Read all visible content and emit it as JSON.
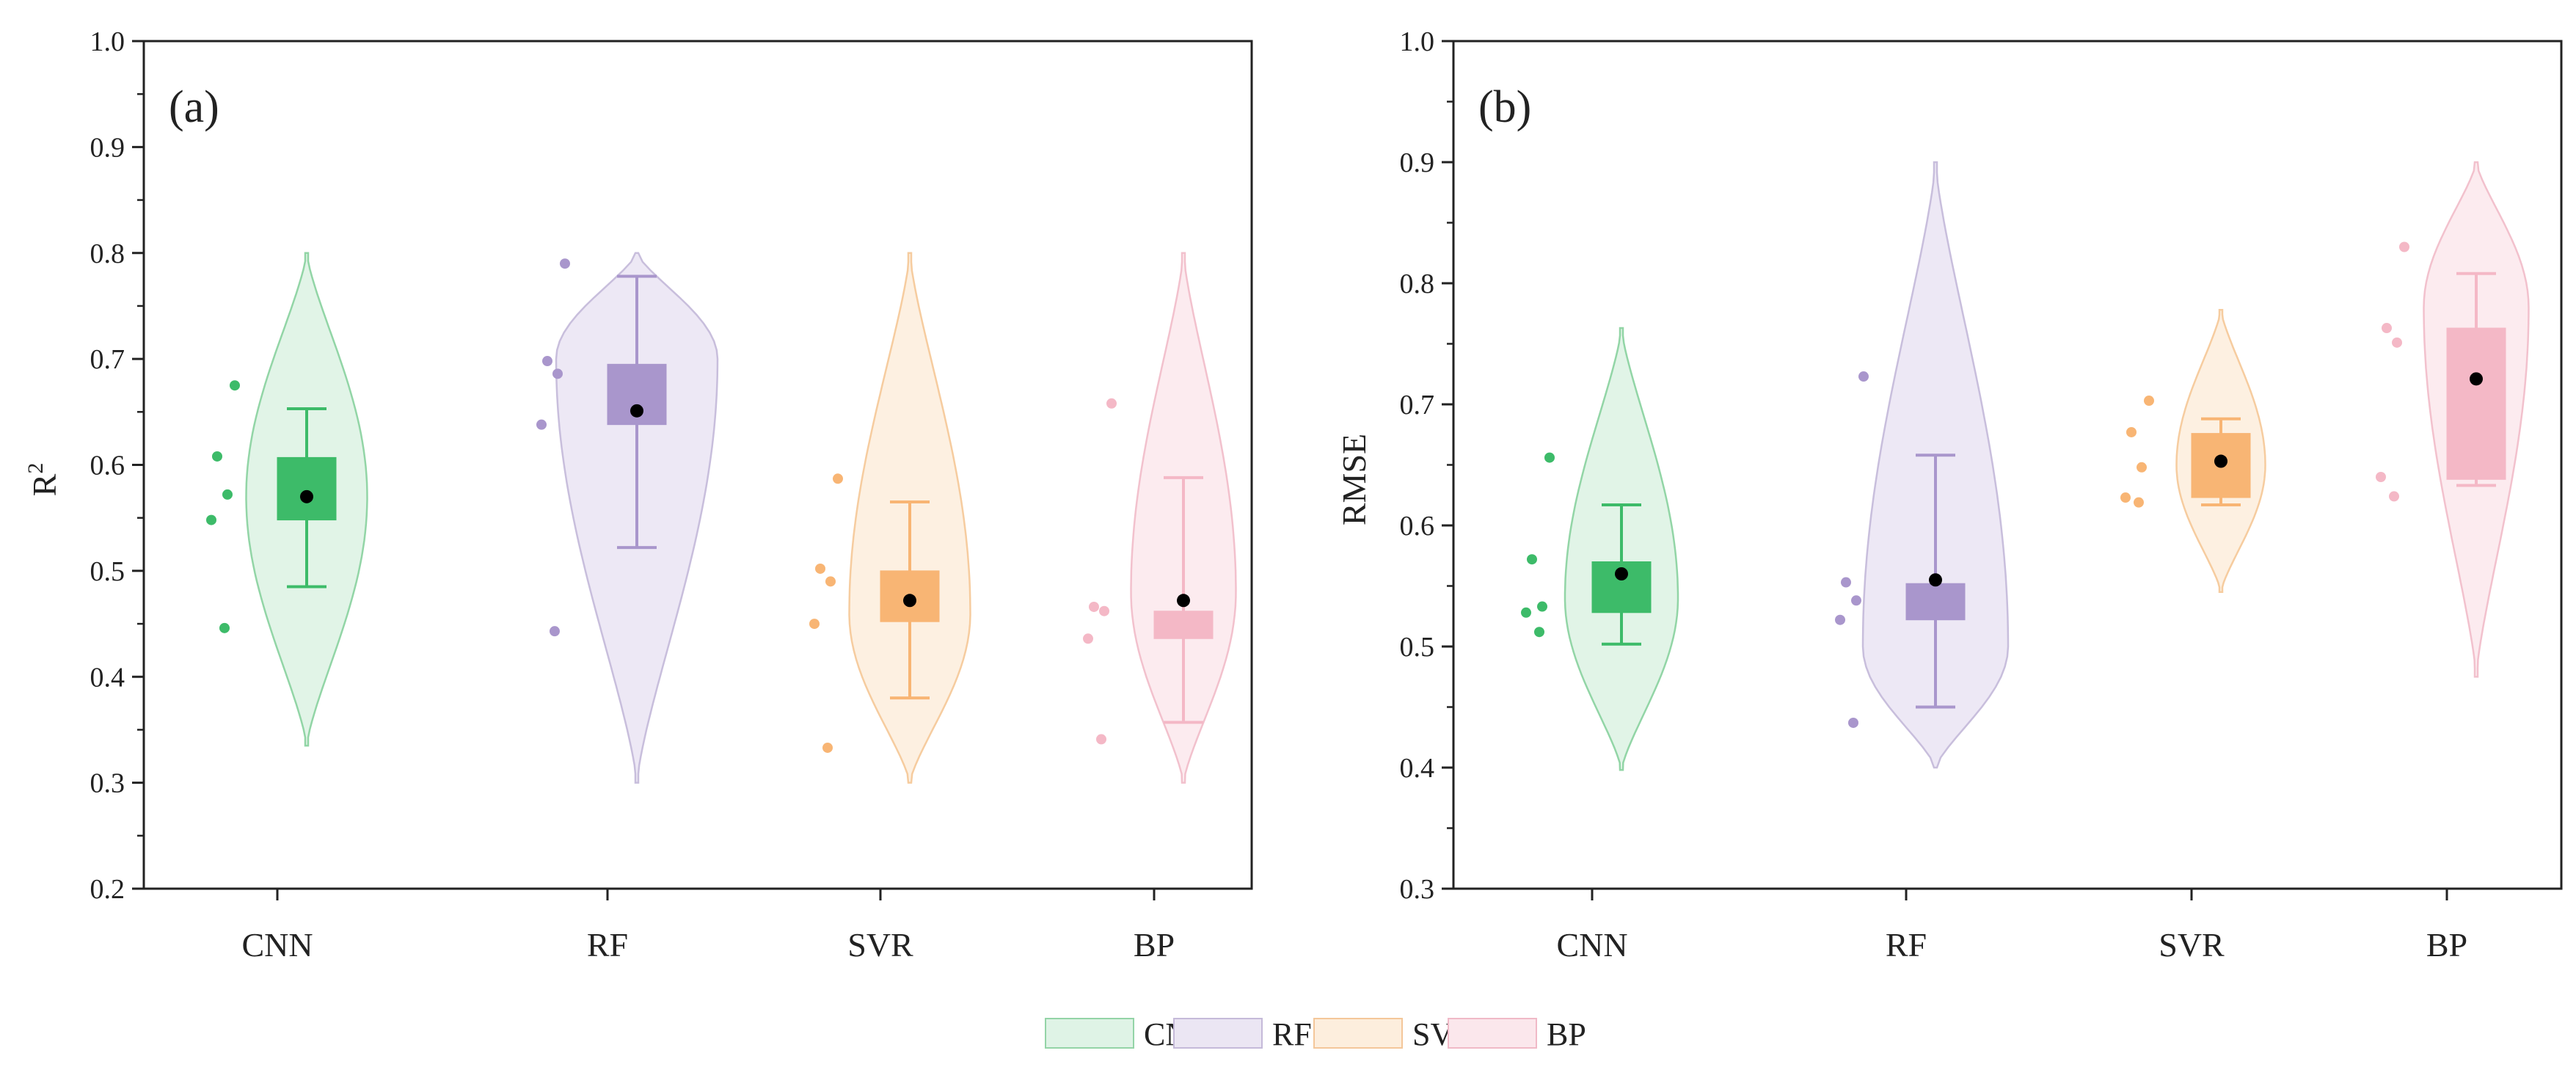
{
  "figure": {
    "legend": [
      {
        "name": "CNN",
        "fill": "#dff3e6",
        "stroke": "#94d4a7"
      },
      {
        "name": "RF",
        "fill": "#ebe6f3",
        "stroke": "#c5bad9"
      },
      {
        "name": "SVR",
        "fill": "#fdeedd",
        "stroke": "#f4c79a"
      },
      {
        "name": "BP",
        "fill": "#fbe7ec",
        "stroke": "#f0b9c7"
      }
    ]
  },
  "colors": {
    "CNN": {
      "box": "#3dbb69",
      "violin": "#e1f4e7",
      "violin_stroke": "#92d5a6",
      "point": "#3dbb69"
    },
    "RF": {
      "box": "#a996cc",
      "violin": "#ede8f5",
      "violin_stroke": "#c8bedc",
      "point": "#a996cc"
    },
    "SVR": {
      "box": "#f8b574",
      "violin": "#fdf0e1",
      "violin_stroke": "#f6cc9f",
      "point": "#f8b574"
    },
    "BP": {
      "box": "#f4b8c6",
      "violin": "#fcebef",
      "violin_stroke": "#f2c1cd",
      "point": "#f4b8c6"
    }
  },
  "chart_data": [
    {
      "type": "violin",
      "panel_label": "(a)",
      "ylabel": "R",
      "ylabel_sup": "2",
      "ylim": [
        0.2,
        1.0
      ],
      "yticks": [
        "0.2",
        "0.3",
        "0.4",
        "0.5",
        "0.6",
        "0.7",
        "0.8",
        "0.9",
        "1.0"
      ],
      "categories": [
        "CNN",
        "RF",
        "SVR",
        "BP"
      ],
      "series": [
        {
          "name": "CNN",
          "violin_range": [
            0.335,
            0.8
          ],
          "violin_mode": 0.57,
          "violin_max_halfwidth": 0.75,
          "q1": 0.548,
          "median": 0.57,
          "q3": 0.607,
          "whisker_low": 0.485,
          "whisker_high": 0.653,
          "mean": 0.57,
          "points": [
            0.675,
            0.608,
            0.572,
            0.548,
            0.446
          ]
        },
        {
          "name": "RF",
          "violin_range": [
            0.3,
            0.8
          ],
          "violin_mode": 0.7,
          "violin_max_halfwidth": 1.0,
          "q1": 0.638,
          "median": 0.65,
          "q3": 0.695,
          "whisker_low": 0.522,
          "whisker_high": 0.778,
          "mean": 0.651,
          "points": [
            0.79,
            0.698,
            0.686,
            0.638,
            0.443
          ]
        },
        {
          "name": "SVR",
          "violin_range": [
            0.3,
            0.8
          ],
          "violin_mode": 0.46,
          "violin_max_halfwidth": 0.75,
          "q1": 0.452,
          "median": 0.47,
          "q3": 0.5,
          "whisker_low": 0.38,
          "whisker_high": 0.565,
          "mean": 0.472,
          "points": [
            0.587,
            0.502,
            0.49,
            0.45,
            0.333
          ]
        },
        {
          "name": "BP",
          "violin_range": [
            0.3,
            0.8
          ],
          "violin_mode": 0.48,
          "violin_max_halfwidth": 0.65,
          "q1": 0.436,
          "median": 0.45,
          "q3": 0.462,
          "whisker_low": 0.357,
          "whisker_high": 0.588,
          "mean": 0.472,
          "points": [
            0.658,
            0.466,
            0.462,
            0.436,
            0.341
          ]
        }
      ]
    },
    {
      "type": "violin",
      "panel_label": "(b)",
      "ylabel": "RMSE",
      "ylabel_sup": "",
      "ylim": [
        0.3,
        1.0
      ],
      "yticks": [
        "0.3",
        "0.4",
        "0.5",
        "0.6",
        "0.7",
        "0.8",
        "0.9",
        "1.0"
      ],
      "categories": [
        "CNN",
        "RF",
        "SVR",
        "BP"
      ],
      "series": [
        {
          "name": "CNN",
          "violin_range": [
            0.398,
            0.763
          ],
          "violin_mode": 0.54,
          "violin_max_halfwidth": 0.7,
          "q1": 0.528,
          "median": 0.553,
          "q3": 0.57,
          "whisker_low": 0.502,
          "whisker_high": 0.617,
          "mean": 0.56,
          "points": [
            0.656,
            0.572,
            0.533,
            0.528,
            0.512
          ]
        },
        {
          "name": "RF",
          "violin_range": [
            0.4,
            0.9
          ],
          "violin_mode": 0.5,
          "violin_max_halfwidth": 0.9,
          "q1": 0.522,
          "median": 0.54,
          "q3": 0.552,
          "whisker_low": 0.45,
          "whisker_high": 0.658,
          "mean": 0.555,
          "points": [
            0.723,
            0.553,
            0.538,
            0.522,
            0.437
          ]
        },
        {
          "name": "SVR",
          "violin_range": [
            0.545,
            0.778
          ],
          "violin_mode": 0.65,
          "violin_max_halfwidth": 0.55,
          "q1": 0.623,
          "median": 0.648,
          "q3": 0.676,
          "whisker_low": 0.617,
          "whisker_high": 0.688,
          "mean": 0.653,
          "points": [
            0.703,
            0.677,
            0.648,
            0.623,
            0.619
          ]
        },
        {
          "name": "BP",
          "violin_range": [
            0.475,
            0.9
          ],
          "violin_mode": 0.78,
          "violin_max_halfwidth": 0.65,
          "q1": 0.638,
          "median": 0.7,
          "q3": 0.763,
          "whisker_low": 0.633,
          "whisker_high": 0.808,
          "mean": 0.721,
          "points": [
            0.83,
            0.763,
            0.751,
            0.64,
            0.624
          ]
        }
      ]
    }
  ]
}
